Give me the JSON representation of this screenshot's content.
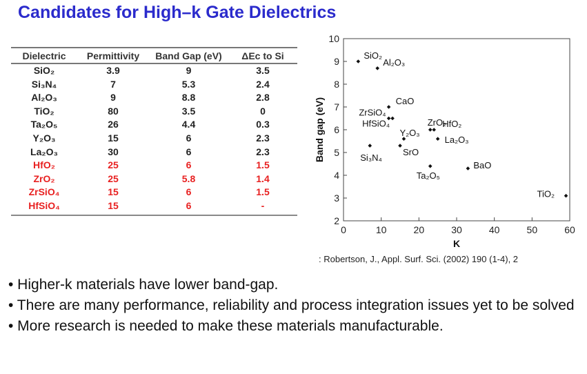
{
  "title": "Candidates for High–k Gate Dielectrics",
  "table": {
    "headers": [
      "Dielectric",
      "Permittivity",
      "Band Gap (eV)",
      "ΔEc to Si"
    ],
    "rows": [
      {
        "name": "SiO₂",
        "k": "3.9",
        "gap": "9",
        "dec": "3.5",
        "red": false
      },
      {
        "name": "Si₃N₄",
        "k": "7",
        "gap": "5.3",
        "dec": "2.4",
        "red": false
      },
      {
        "name": "Al₂O₃",
        "k": "9",
        "gap": "8.8",
        "dec": "2.8",
        "red": false
      },
      {
        "name": "TiO₂",
        "k": "80",
        "gap": "3.5",
        "dec": "0",
        "red": false
      },
      {
        "name": "Ta₂O₅",
        "k": "26",
        "gap": "4.4",
        "dec": "0.3",
        "red": false
      },
      {
        "name": "Y₂O₃",
        "k": "15",
        "gap": "6",
        "dec": "2.3",
        "red": false
      },
      {
        "name": "La₂O₃",
        "k": "30",
        "gap": "6",
        "dec": "2.3",
        "red": false
      },
      {
        "name": "HfO₂",
        "k": "25",
        "gap": "6",
        "dec": "1.5",
        "red": true
      },
      {
        "name": "ZrO₂",
        "k": "25",
        "gap": "5.8",
        "dec": "1.4",
        "red": true
      },
      {
        "name": "ZrSiO₄",
        "k": "15",
        "gap": "6",
        "dec": "1.5",
        "red": true
      },
      {
        "name": "HfSiO₄",
        "k": "15",
        "gap": "6",
        "dec": "-",
        "red": true
      }
    ]
  },
  "chart_data": {
    "type": "scatter",
    "xlabel": "K",
    "ylabel": "Band gap (eV)",
    "xlim": [
      0,
      60
    ],
    "ylim": [
      2,
      10
    ],
    "xticks": [
      0,
      10,
      20,
      30,
      40,
      50,
      60
    ],
    "yticks": [
      2,
      3,
      4,
      5,
      6,
      7,
      8,
      9,
      10
    ],
    "grid": false,
    "points": [
      {
        "label": "SiO2",
        "x": 3.9,
        "y": 9.0
      },
      {
        "label": "Al2O3",
        "x": 9,
        "y": 8.7
      },
      {
        "label": "CaO",
        "x": 12,
        "y": 7.0
      },
      {
        "label": "ZrSiO4",
        "x": 12,
        "y": 6.5
      },
      {
        "label": "HfSiO4",
        "x": 13,
        "y": 6.5
      },
      {
        "label": "Y2O3",
        "x": 16,
        "y": 5.6
      },
      {
        "label": "SrO",
        "x": 15,
        "y": 5.3
      },
      {
        "label": "ZrO2",
        "x": 23,
        "y": 6.0
      },
      {
        "label": "HfO2",
        "x": 24,
        "y": 6.0
      },
      {
        "label": "La2O3",
        "x": 25,
        "y": 5.6
      },
      {
        "label": "Si3N4",
        "x": 7,
        "y": 5.3
      },
      {
        "label": "Ta2O5",
        "x": 23,
        "y": 4.4
      },
      {
        "label": "BaO",
        "x": 33,
        "y": 4.3
      },
      {
        "label": "TiO2",
        "x": 59,
        "y": 3.1
      }
    ],
    "point_labels": [
      "SiO₂",
      "Al₂O₃",
      "CaO",
      "ZrSiO₄",
      "HfSiO₄",
      "Y₂O₃",
      "SrO",
      "ZrO₂",
      "HfO₂",
      "La₂O₃",
      "Si₃N₄",
      "Ta₂O₅",
      "BaO",
      "TiO₂"
    ]
  },
  "citation": ": Robertson, J., Appl. Surf. Sci. (2002) 190 (1-4), 2",
  "bullets": [
    "• Higher-k materials have lower band-gap.",
    "• There are many performance, reliability and process integration issues yet to be solved",
    "• More research is needed to make these materials manufacturable."
  ]
}
